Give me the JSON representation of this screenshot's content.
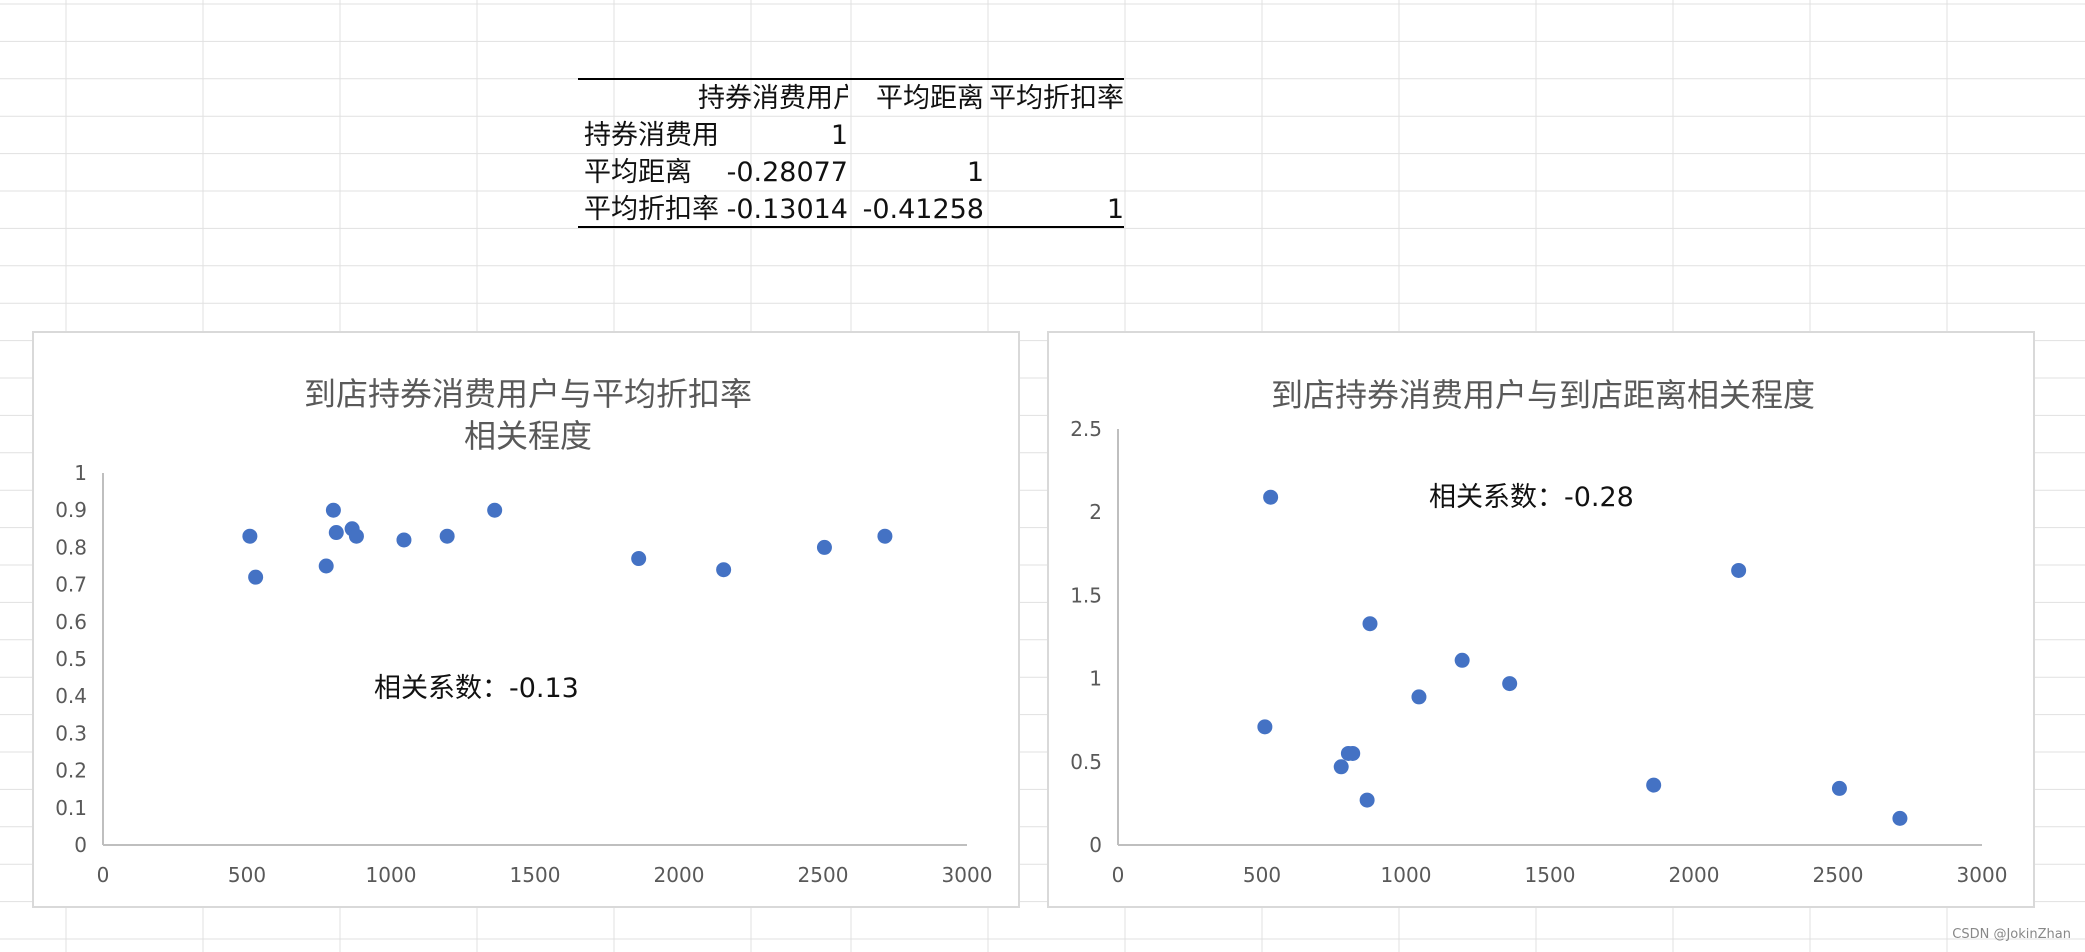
{
  "table": {
    "headers": [
      "",
      "持券消费用户",
      "平均距离",
      "平均折扣率"
    ],
    "rows": [
      {
        "label": "持券消费用户",
        "values": [
          "1",
          "",
          ""
        ]
      },
      {
        "label": "平均距离",
        "values": [
          "-0.28077",
          "1",
          ""
        ]
      },
      {
        "label": "平均折扣率",
        "values": [
          "-0.13014",
          "-0.41258",
          "1"
        ]
      }
    ]
  },
  "chart_data": [
    {
      "type": "scatter",
      "title": [
        "到店持券消费用户与平均折扣率",
        "相关程度"
      ],
      "annotation": "相关系数：-0.13",
      "xlim": [
        0,
        3000
      ],
      "ylim": [
        0,
        1
      ],
      "xticks": [
        "0",
        "500",
        "1000",
        "1500",
        "2000",
        "2500",
        "3000"
      ],
      "yticks": [
        "0",
        "0.1",
        "0.2",
        "0.3",
        "0.4",
        "0.5",
        "0.6",
        "0.7",
        "0.8",
        "0.9",
        "1"
      ],
      "grid": false,
      "color": "#4472c4",
      "points": [
        {
          "x": 510,
          "y": 0.83
        },
        {
          "x": 530,
          "y": 0.72
        },
        {
          "x": 775,
          "y": 0.75
        },
        {
          "x": 800,
          "y": 0.9
        },
        {
          "x": 810,
          "y": 0.84
        },
        {
          "x": 865,
          "y": 0.85
        },
        {
          "x": 880,
          "y": 0.83
        },
        {
          "x": 1045,
          "y": 0.82
        },
        {
          "x": 1195,
          "y": 0.83
        },
        {
          "x": 1360,
          "y": 0.9
        },
        {
          "x": 1860,
          "y": 0.77
        },
        {
          "x": 2155,
          "y": 0.74
        },
        {
          "x": 2505,
          "y": 0.8
        },
        {
          "x": 2715,
          "y": 0.83
        }
      ]
    },
    {
      "type": "scatter",
      "title": [
        "到店持券消费用户与到店距离相关程度"
      ],
      "annotation": "相关系数：-0.28",
      "xlim": [
        0,
        3000
      ],
      "ylim": [
        0,
        2.5
      ],
      "xticks": [
        "0",
        "500",
        "1000",
        "1500",
        "2000",
        "2500",
        "3000"
      ],
      "yticks": [
        "0",
        "0.5",
        "1",
        "1.5",
        "2",
        "2.5"
      ],
      "grid": false,
      "color": "#4472c4",
      "points": [
        {
          "x": 510,
          "y": 0.71
        },
        {
          "x": 530,
          "y": 2.09
        },
        {
          "x": 775,
          "y": 0.47
        },
        {
          "x": 800,
          "y": 0.55
        },
        {
          "x": 815,
          "y": 0.55
        },
        {
          "x": 865,
          "y": 0.27
        },
        {
          "x": 875,
          "y": 1.33
        },
        {
          "x": 1045,
          "y": 0.89
        },
        {
          "x": 1195,
          "y": 1.11
        },
        {
          "x": 1360,
          "y": 0.97
        },
        {
          "x": 1860,
          "y": 0.36
        },
        {
          "x": 2155,
          "y": 1.65
        },
        {
          "x": 2505,
          "y": 0.34
        },
        {
          "x": 2715,
          "y": 0.16
        }
      ]
    }
  ],
  "watermark": "CSDN @JokinZhan"
}
